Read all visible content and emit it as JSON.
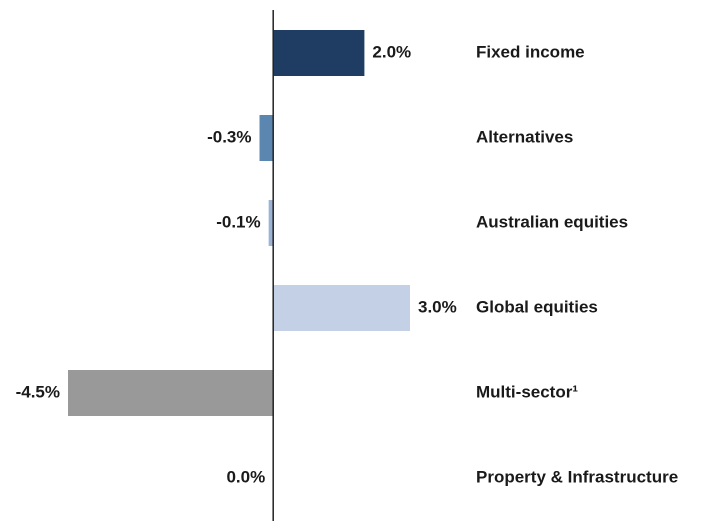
{
  "chart_data": {
    "type": "hbar",
    "categories": [
      "Fixed income",
      "Alternatives",
      "Australian equities",
      "Global equities",
      "Multi-sector¹",
      "Property & Infrastructure"
    ],
    "values": [
      2.0,
      -0.3,
      -0.1,
      3.0,
      -4.5,
      0.0
    ],
    "value_labels": [
      "2.0%",
      "-0.3%",
      "-0.1%",
      "3.0%",
      "-4.5%",
      "0.0%"
    ],
    "colors": [
      "#1f3d63",
      "#5b86b0",
      "#9db3d5",
      "#c3d0e6",
      "#999999",
      "#7f7f7f"
    ],
    "xlim": [
      -4.5,
      3.0
    ]
  }
}
